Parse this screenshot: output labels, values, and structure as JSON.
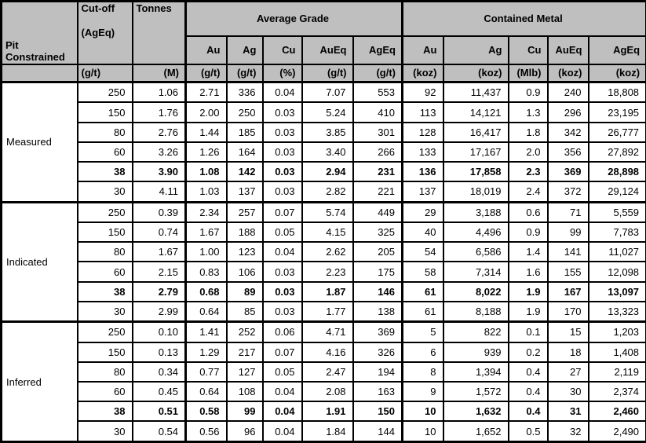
{
  "colors": {
    "header_bg": "#bfbfbf",
    "border": "#000000",
    "body_bg": "#ffffff",
    "text": "#000000"
  },
  "table": {
    "header": {
      "pit": "Pit Constrained",
      "cutoff_line1": "Cut-off",
      "cutoff_line2": "(AgEq)",
      "tonnes": "Tonnes",
      "avg_grade_group": "Average Grade",
      "contained_metal_group": "Contained Metal",
      "grade_cols": [
        "Au",
        "Ag",
        "Cu",
        "AuEq",
        "AgEq"
      ],
      "metal_cols": [
        "Au",
        "Ag",
        "Cu",
        "AuEq",
        "AgEq"
      ],
      "units": {
        "cutoff": "(g/t)",
        "tonnes": "(M)",
        "grade": [
          "(g/t)",
          "(g/t)",
          "(%)",
          "(g/t)",
          "(g/t)"
        ],
        "metal": [
          "(koz)",
          "(koz)",
          "(Mlb)",
          "(koz)",
          "(koz)"
        ]
      }
    },
    "sections": [
      {
        "label": "Measured",
        "rows": [
          {
            "cutoff": "250",
            "tonnes": "1.06",
            "grade": [
              "2.71",
              "336",
              "0.04",
              "7.07",
              "553"
            ],
            "metal": [
              "92",
              "11,437",
              "0.9",
              "240",
              "18,808"
            ],
            "bold": false
          },
          {
            "cutoff": "150",
            "tonnes": "1.76",
            "grade": [
              "2.00",
              "250",
              "0.03",
              "5.24",
              "410"
            ],
            "metal": [
              "113",
              "14,121",
              "1.3",
              "296",
              "23,195"
            ],
            "bold": false
          },
          {
            "cutoff": "80",
            "tonnes": "2.76",
            "grade": [
              "1.44",
              "185",
              "0.03",
              "3.85",
              "301"
            ],
            "metal": [
              "128",
              "16,417",
              "1.8",
              "342",
              "26,777"
            ],
            "bold": false
          },
          {
            "cutoff": "60",
            "tonnes": "3.26",
            "grade": [
              "1.26",
              "164",
              "0.03",
              "3.40",
              "266"
            ],
            "metal": [
              "133",
              "17,167",
              "2.0",
              "356",
              "27,892"
            ],
            "bold": false
          },
          {
            "cutoff": "38",
            "tonnes": "3.90",
            "grade": [
              "1.08",
              "142",
              "0.03",
              "2.94",
              "231"
            ],
            "metal": [
              "136",
              "17,858",
              "2.3",
              "369",
              "28,898"
            ],
            "bold": true
          },
          {
            "cutoff": "30",
            "tonnes": "4.11",
            "grade": [
              "1.03",
              "137",
              "0.03",
              "2.82",
              "221"
            ],
            "metal": [
              "137",
              "18,019",
              "2.4",
              "372",
              "29,124"
            ],
            "bold": false
          }
        ]
      },
      {
        "label": "Indicated",
        "rows": [
          {
            "cutoff": "250",
            "tonnes": "0.39",
            "grade": [
              "2.34",
              "257",
              "0.07",
              "5.74",
              "449"
            ],
            "metal": [
              "29",
              "3,188",
              "0.6",
              "71",
              "5,559"
            ],
            "bold": false
          },
          {
            "cutoff": "150",
            "tonnes": "0.74",
            "grade": [
              "1.67",
              "188",
              "0.05",
              "4.15",
              "325"
            ],
            "metal": [
              "40",
              "4,496",
              "0.9",
              "99",
              "7,783"
            ],
            "bold": false
          },
          {
            "cutoff": "80",
            "tonnes": "1.67",
            "grade": [
              "1.00",
              "123",
              "0.04",
              "2.62",
              "205"
            ],
            "metal": [
              "54",
              "6,586",
              "1.4",
              "141",
              "11,027"
            ],
            "bold": false
          },
          {
            "cutoff": "60",
            "tonnes": "2.15",
            "grade": [
              "0.83",
              "106",
              "0.03",
              "2.23",
              "175"
            ],
            "metal": [
              "58",
              "7,314",
              "1.6",
              "155",
              "12,098"
            ],
            "bold": false
          },
          {
            "cutoff": "38",
            "tonnes": "2.79",
            "grade": [
              "0.68",
              "89",
              "0.03",
              "1.87",
              "146"
            ],
            "metal": [
              "61",
              "8,022",
              "1.9",
              "167",
              "13,097"
            ],
            "bold": true
          },
          {
            "cutoff": "30",
            "tonnes": "2.99",
            "grade": [
              "0.64",
              "85",
              "0.03",
              "1.77",
              "138"
            ],
            "metal": [
              "61",
              "8,188",
              "1.9",
              "170",
              "13,323"
            ],
            "bold": false
          }
        ]
      },
      {
        "label": "Inferred",
        "rows": [
          {
            "cutoff": "250",
            "tonnes": "0.10",
            "grade": [
              "1.41",
              "252",
              "0.06",
              "4.71",
              "369"
            ],
            "metal": [
              "5",
              "822",
              "0.1",
              "15",
              "1,203"
            ],
            "bold": false
          },
          {
            "cutoff": "150",
            "tonnes": "0.13",
            "grade": [
              "1.29",
              "217",
              "0.07",
              "4.16",
              "326"
            ],
            "metal": [
              "6",
              "939",
              "0.2",
              "18",
              "1,408"
            ],
            "bold": false
          },
          {
            "cutoff": "80",
            "tonnes": "0.34",
            "grade": [
              "0.77",
              "127",
              "0.05",
              "2.47",
              "194"
            ],
            "metal": [
              "8",
              "1,394",
              "0.4",
              "27",
              "2,119"
            ],
            "bold": false
          },
          {
            "cutoff": "60",
            "tonnes": "0.45",
            "grade": [
              "0.64",
              "108",
              "0.04",
              "2.08",
              "163"
            ],
            "metal": [
              "9",
              "1,572",
              "0.4",
              "30",
              "2,374"
            ],
            "bold": false
          },
          {
            "cutoff": "38",
            "tonnes": "0.51",
            "grade": [
              "0.58",
              "99",
              "0.04",
              "1.91",
              "150"
            ],
            "metal": [
              "10",
              "1,632",
              "0.4",
              "31",
              "2,460"
            ],
            "bold": true
          },
          {
            "cutoff": "30",
            "tonnes": "0.54",
            "grade": [
              "0.56",
              "96",
              "0.04",
              "1.84",
              "144"
            ],
            "metal": [
              "10",
              "1,652",
              "0.5",
              "32",
              "2,490"
            ],
            "bold": false
          }
        ]
      }
    ]
  }
}
